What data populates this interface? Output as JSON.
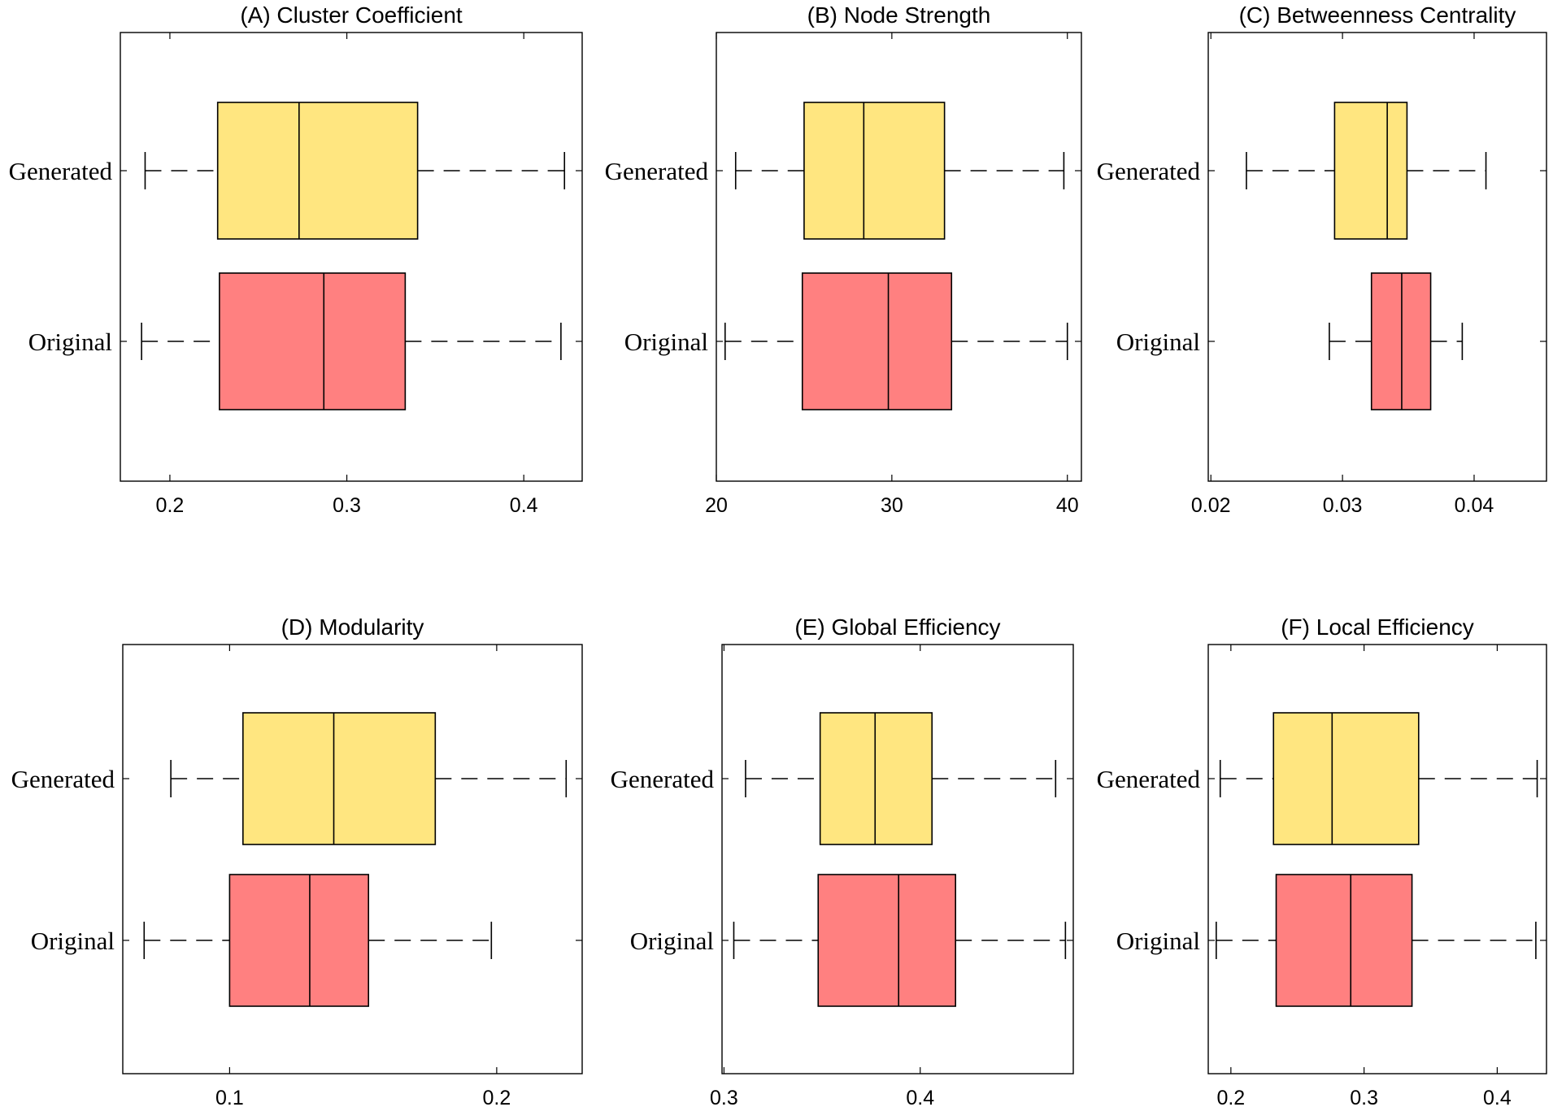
{
  "chart_data": [
    {
      "type": "box",
      "title": "(A) Cluster Coefficient",
      "categories": [
        "Generated",
        "Original"
      ],
      "xlim": [
        0.172,
        0.433
      ],
      "xticks": [
        0.2,
        0.3,
        0.4
      ],
      "xtick_labels": [
        "0.2",
        "0.3",
        "0.4"
      ],
      "series": [
        {
          "name": "Generated",
          "color": "#FFE680",
          "min": 0.186,
          "q1": 0.227,
          "median": 0.273,
          "q3": 0.34,
          "max": 0.423
        },
        {
          "name": "Original",
          "color": "#FF8080",
          "min": 0.184,
          "q1": 0.228,
          "median": 0.287,
          "q3": 0.333,
          "max": 0.421
        }
      ]
    },
    {
      "type": "box",
      "title": "(B) Node Strength",
      "categories": [
        "Generated",
        "Original"
      ],
      "xlim": [
        20.0,
        40.8
      ],
      "xticks": [
        20,
        30,
        40
      ],
      "xtick_labels": [
        "20",
        "30",
        "40"
      ],
      "series": [
        {
          "name": "Generated",
          "color": "#FFE680",
          "min": 21.1,
          "q1": 25.0,
          "median": 28.4,
          "q3": 33.0,
          "max": 39.8
        },
        {
          "name": "Original",
          "color": "#FF8080",
          "min": 20.5,
          "q1": 24.9,
          "median": 29.8,
          "q3": 33.4,
          "max": 40.0
        }
      ]
    },
    {
      "type": "box",
      "title": "(C) Betweenness Centrality",
      "categories": [
        "Generated",
        "Original"
      ],
      "xlim": [
        0.0198,
        0.0455
      ],
      "xticks": [
        0.02,
        0.03,
        0.04
      ],
      "xtick_labels": [
        "0.02",
        "0.03",
        "0.04"
      ],
      "series": [
        {
          "name": "Generated",
          "color": "#FFE680",
          "min": 0.0227,
          "q1": 0.0294,
          "median": 0.0334,
          "q3": 0.0349,
          "max": 0.0409
        },
        {
          "name": "Original",
          "color": "#FF8080",
          "min": 0.029,
          "q1": 0.0322,
          "median": 0.0345,
          "q3": 0.0367,
          "max": 0.0391
        }
      ]
    },
    {
      "type": "box",
      "title": "(D) Modularity",
      "categories": [
        "Generated",
        "Original"
      ],
      "xlim": [
        0.06,
        0.232
      ],
      "xticks": [
        0.1,
        0.2
      ],
      "xtick_labels": [
        "0.1",
        "0.2"
      ],
      "series": [
        {
          "name": "Generated",
          "color": "#FFE680",
          "min": 0.078,
          "q1": 0.105,
          "median": 0.139,
          "q3": 0.177,
          "max": 0.226
        },
        {
          "name": "Original",
          "color": "#FF8080",
          "min": 0.068,
          "q1": 0.1,
          "median": 0.13,
          "q3": 0.152,
          "max": 0.198
        }
      ]
    },
    {
      "type": "box",
      "title": "(E) Global Efficiency",
      "categories": [
        "Generated",
        "Original"
      ],
      "xlim": [
        0.299,
        0.478
      ],
      "xticks": [
        0.3,
        0.4
      ],
      "xtick_labels": [
        "0.3",
        "0.4"
      ],
      "series": [
        {
          "name": "Generated",
          "color": "#FFE680",
          "min": 0.311,
          "q1": 0.349,
          "median": 0.377,
          "q3": 0.406,
          "max": 0.469
        },
        {
          "name": "Original",
          "color": "#FF8080",
          "min": 0.305,
          "q1": 0.348,
          "median": 0.389,
          "q3": 0.418,
          "max": 0.474
        }
      ]
    },
    {
      "type": "box",
      "title": "(F) Local Efficiency",
      "categories": [
        "Generated",
        "Original"
      ],
      "xlim": [
        0.183,
        0.437
      ],
      "xticks": [
        0.2,
        0.3,
        0.4
      ],
      "xtick_labels": [
        "0.2",
        "0.3",
        "0.4"
      ],
      "series": [
        {
          "name": "Generated",
          "color": "#FFE680",
          "min": 0.192,
          "q1": 0.232,
          "median": 0.276,
          "q3": 0.341,
          "max": 0.43
        },
        {
          "name": "Original",
          "color": "#FF8080",
          "min": 0.189,
          "q1": 0.234,
          "median": 0.29,
          "q3": 0.336,
          "max": 0.429
        }
      ]
    }
  ]
}
